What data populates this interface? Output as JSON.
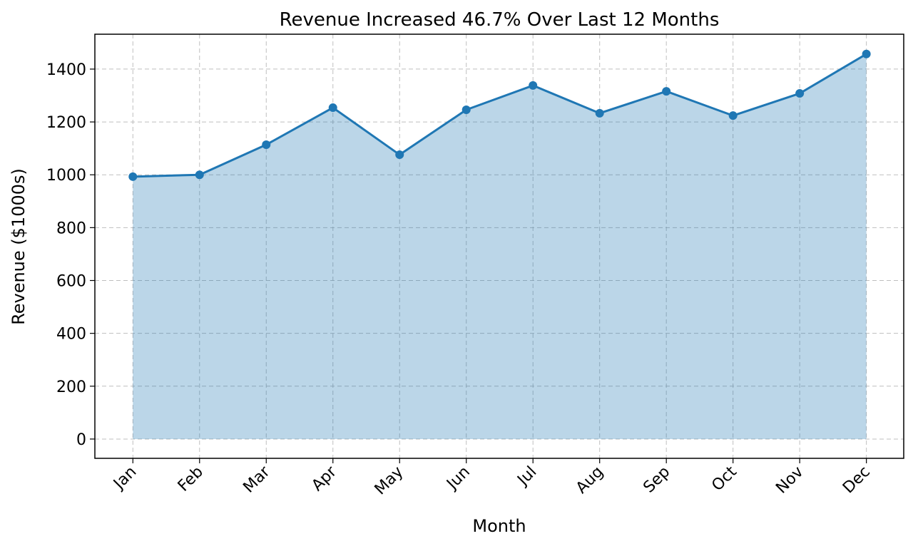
{
  "chart_data": {
    "type": "area",
    "title": "Revenue Increased 46.7% Over Last 12 Months",
    "xlabel": "Month",
    "ylabel": "Revenue ($1000s)",
    "categories": [
      "Jan",
      "Feb",
      "Mar",
      "Apr",
      "May",
      "Jun",
      "Jul",
      "Aug",
      "Sep",
      "Oct",
      "Nov",
      "Dec"
    ],
    "values": [
      993,
      1000,
      1114,
      1254,
      1076,
      1246,
      1338,
      1233,
      1316,
      1224,
      1308,
      1457
    ],
    "ylim": [
      -73,
      1532
    ],
    "yticks": [
      0,
      200,
      400,
      600,
      800,
      1000,
      1200,
      1400
    ],
    "grid": true,
    "markers": true,
    "line_color": "#1f77b4",
    "fill_color": "#1f77b4",
    "fill_opacity": 0.3
  }
}
